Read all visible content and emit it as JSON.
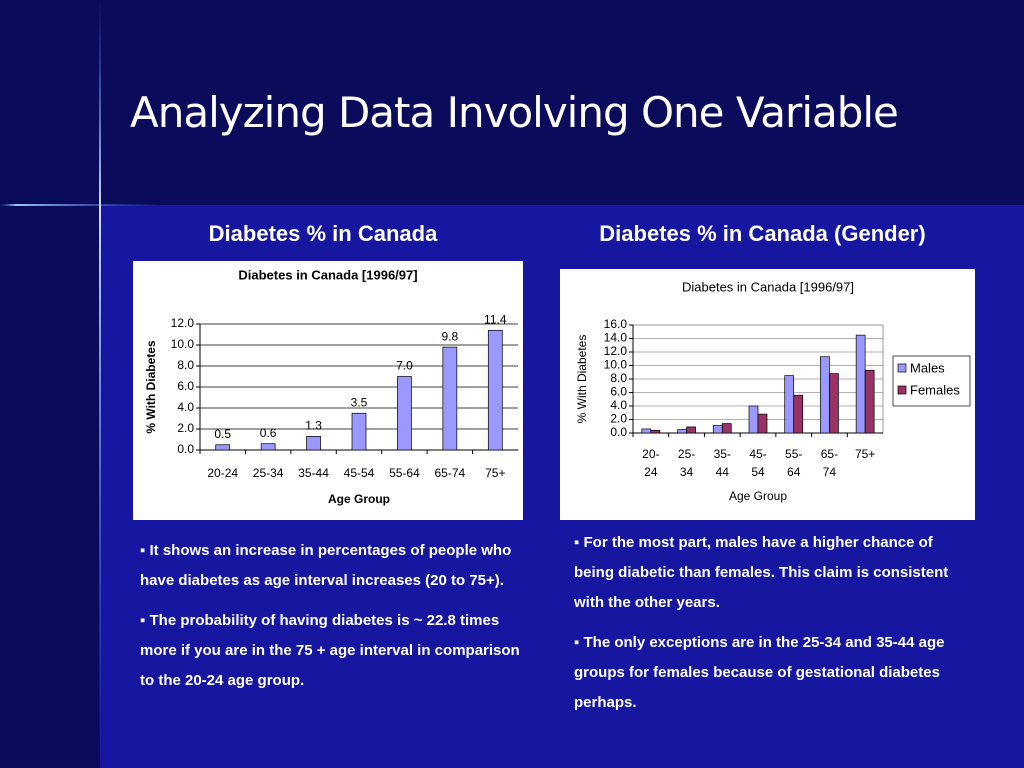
{
  "slide": {
    "title": "Analyzing Data Involving One Variable",
    "headings": [
      "Diabetes % in Canada",
      "Diabetes % in Canada (Gender)"
    ],
    "left_bullets": [
      "It shows an increase in percentages of people who have diabetes as age interval increases (20 to 75+).",
      "The probability of having diabetes is ~ 22.8 times more if you are in the 75 + age interval in comparison to the 20-24 age group."
    ],
    "right_bullets": [
      "For the most part, males have a higher chance of being diabetic than females. This claim is consistent with the other years.",
      "The only exceptions are in the 25-34 and 35-44 age groups for females because of gestational diabetes perhaps."
    ]
  },
  "chart_data": [
    {
      "type": "bar",
      "title": "Diabetes in Canada [1996/97]",
      "x_label": "Age Group",
      "y_label": "% With Diabetes",
      "categories": [
        "20-24",
        "25-34",
        "35-44",
        "45-54",
        "55-64",
        "65-74",
        "75+"
      ],
      "values": [
        0.5,
        0.6,
        1.3,
        3.5,
        7.0,
        9.8,
        11.4
      ],
      "value_labels": [
        "0.5",
        "0.6",
        "1.3",
        "3.5",
        "7.0",
        "9.8",
        "11.4"
      ],
      "color": "#9999ff",
      "ylim": [
        0,
        12
      ],
      "yticks": [
        {
          "value": 0,
          "label": "0.0"
        },
        {
          "value": 2,
          "label": "2.0"
        },
        {
          "value": 4,
          "label": "4.0"
        },
        {
          "value": 6,
          "label": "6.0"
        },
        {
          "value": 8,
          "label": "8.0"
        },
        {
          "value": 10,
          "label": "10.0"
        },
        {
          "value": 12,
          "label": "12.0"
        }
      ],
      "grid": true
    },
    {
      "type": "grouped_bar",
      "title": "Diabetes in Canada [1996/97]",
      "x_label": "Age Group",
      "y_label": "% With Diabetes",
      "categories": [
        "20-24",
        "25-34",
        "35-44",
        "45-54",
        "55-64",
        "65-74",
        "75+"
      ],
      "series": [
        {
          "name": "Males",
          "color": "#9999ff",
          "values": [
            0.6,
            0.5,
            1.1,
            4.0,
            8.5,
            11.3,
            14.5
          ]
        },
        {
          "name": "Females",
          "color": "#993366",
          "values": [
            0.4,
            0.9,
            1.4,
            2.8,
            5.6,
            8.8,
            9.3
          ]
        }
      ],
      "ylim": [
        0,
        16
      ],
      "yticks": [
        {
          "value": 0,
          "label": "0.0"
        },
        {
          "value": 2,
          "label": "2.0"
        },
        {
          "value": 4,
          "label": "4.0"
        },
        {
          "value": 6,
          "label": "6.0"
        },
        {
          "value": 8,
          "label": "8.0"
        },
        {
          "value": 10,
          "label": "10.0"
        },
        {
          "value": 12,
          "label": "12.0"
        },
        {
          "value": 14,
          "label": "14.0"
        },
        {
          "value": 16,
          "label": "16.0"
        }
      ],
      "grid": true,
      "legend": "right"
    }
  ]
}
